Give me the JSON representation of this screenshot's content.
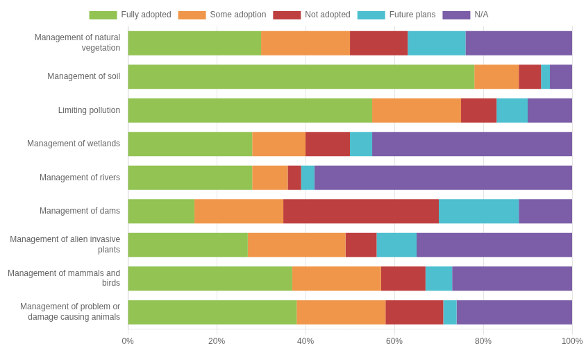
{
  "chart_data": {
    "type": "bar",
    "orientation": "horizontal",
    "stacked": true,
    "categories": [
      "Management of natural\nvegetation",
      "Management of soil",
      "Limiting pollution",
      "Management of wetlands",
      "Management of rivers",
      "Management of dams",
      "Management of alien invasive\nplants",
      "Management of mammals and\nbirds",
      "Management of problem or\ndamage causing animals"
    ],
    "series": [
      {
        "name": "Fully adopted",
        "color": "#92c353",
        "values": [
          30,
          78,
          55,
          28,
          28,
          15,
          27,
          37,
          38
        ]
      },
      {
        "name": "Some adoption",
        "color": "#f0964a",
        "values": [
          20,
          10,
          20,
          12,
          8,
          20,
          22,
          20,
          20
        ]
      },
      {
        "name": "Not adopted",
        "color": "#be3f3f",
        "values": [
          13,
          5,
          8,
          10,
          3,
          35,
          7,
          10,
          13
        ]
      },
      {
        "name": "Future plans",
        "color": "#4dbfcf",
        "values": [
          13,
          2,
          7,
          5,
          3,
          18,
          9,
          6,
          3
        ]
      },
      {
        "name": "N/A",
        "color": "#7b5ea7",
        "values": [
          24,
          5,
          10,
          45,
          58,
          12,
          35,
          27,
          26
        ]
      }
    ],
    "xlim": [
      0,
      100
    ],
    "xticks": [
      {
        "value": 0,
        "label": "0%"
      },
      {
        "value": 20,
        "label": "20%"
      },
      {
        "value": 40,
        "label": "40%"
      },
      {
        "value": 60,
        "label": "60%"
      },
      {
        "value": 80,
        "label": "80%"
      },
      {
        "value": 100,
        "label": "100%"
      }
    ],
    "grid": true,
    "legend": "top"
  }
}
